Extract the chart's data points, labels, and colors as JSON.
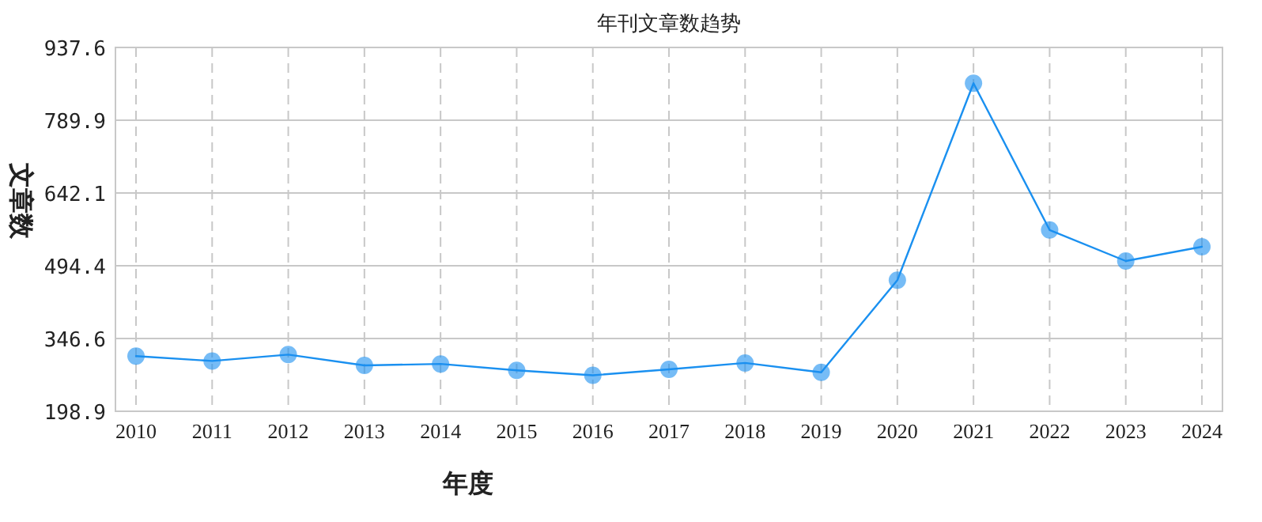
{
  "chart_data": {
    "type": "line",
    "title": "年刊文章数趋势",
    "xlabel": "年度",
    "ylabel": "文章数",
    "categories": [
      "2010",
      "2011",
      "2012",
      "2013",
      "2014",
      "2015",
      "2016",
      "2017",
      "2018",
      "2019",
      "2020",
      "2021",
      "2022",
      "2023",
      "2024"
    ],
    "series": [
      {
        "color": "#1a90f0",
        "values": [
          311,
          301,
          314,
          292,
          295,
          282,
          272,
          284,
          297,
          278,
          465,
          865,
          567,
          504,
          533
        ]
      }
    ],
    "ylim": [
      198.9,
      937.6
    ],
    "yticks": [
      198.9,
      346.6,
      494.4,
      642.1,
      789.9,
      937.6
    ],
    "grid": true,
    "marker": "circle",
    "line_style": "solid"
  }
}
